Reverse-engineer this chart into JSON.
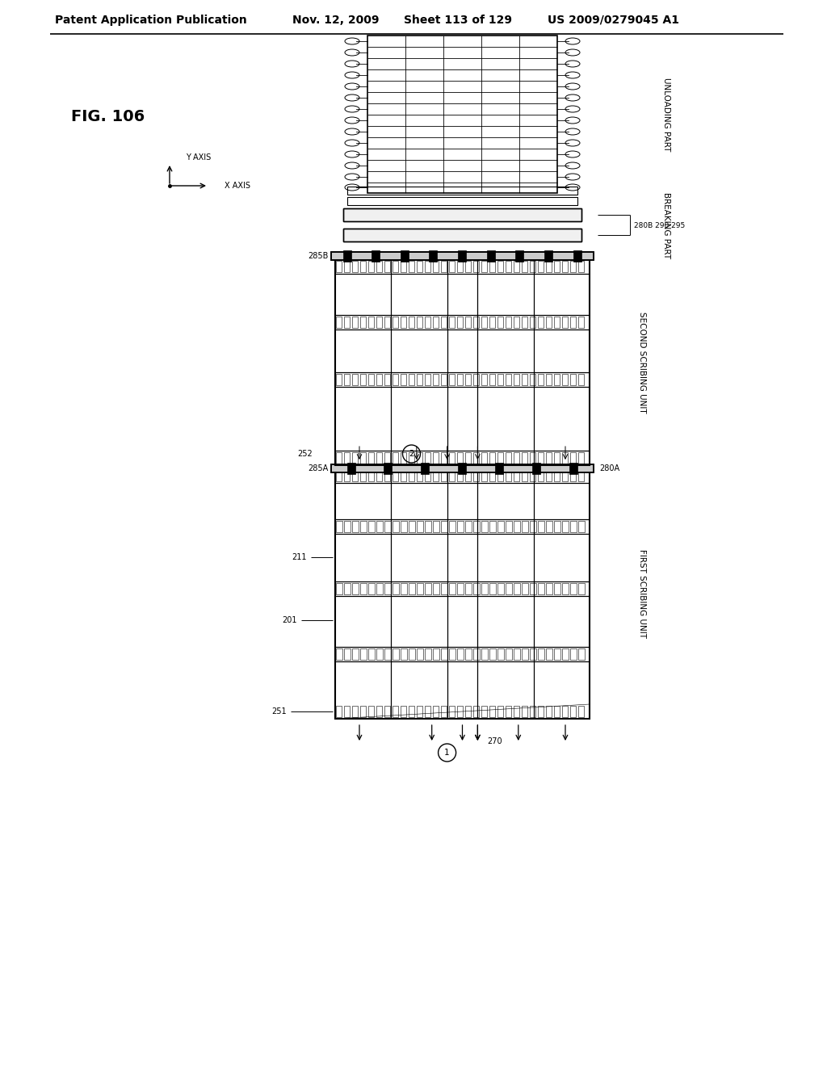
{
  "bg_color": "#ffffff",
  "line_color": "#000000",
  "header_text": "Patent Application Publication",
  "header_date": "Nov. 12, 2009",
  "header_sheet": "Sheet 113 of 129",
  "header_patent": "US 2009/0279045 A1",
  "fig_label": "FIG. 106",
  "title_fontsize": 11,
  "label_fontsize": 7,
  "note_280B_290_295": "280B 290 295",
  "note_285B": "285B",
  "note_285A": "285A",
  "note_280A": "280A",
  "note_252": "252",
  "note_211": "211",
  "note_201": "201",
  "note_251": "251",
  "note_270": "270",
  "label_unloading": "UNLOADING PART",
  "label_breaking": "BREAKING PART",
  "label_second": "SECOND SCRIBING UNIT",
  "label_first": "FIRST SCRIBING UNIT"
}
